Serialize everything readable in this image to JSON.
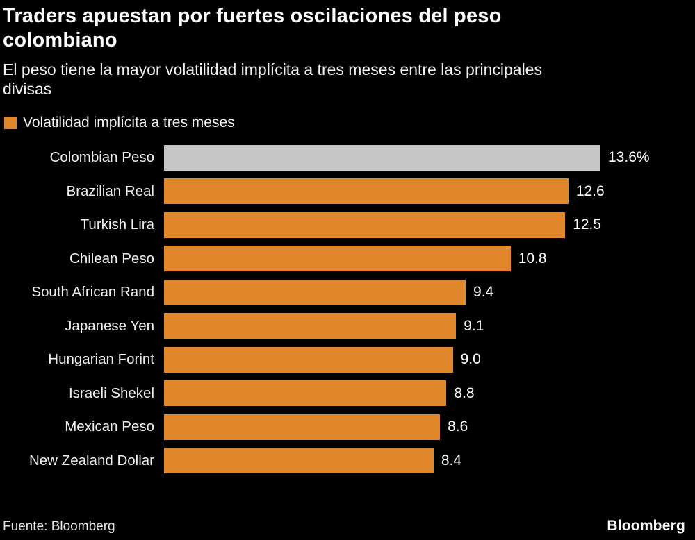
{
  "title": "Traders apuestan por fuertes oscilaciones del peso colombiano",
  "subtitle": "El peso tiene la mayor volatilidad implícita a tres meses entre las principales divisas",
  "legend": {
    "label": "Volatilidad implícita a tres meses",
    "color": "#E1872B"
  },
  "colors": {
    "background": "#000000",
    "bar": "#E1872B",
    "highlight": "#C6C6C6",
    "text": "#FFFFFF"
  },
  "chart_data": {
    "type": "bar",
    "orientation": "horizontal",
    "title": "Traders apuestan por fuertes oscilaciones del peso colombiano",
    "subtitle": "El peso tiene la mayor volatilidad implícita a tres meses entre las principales divisas",
    "legend_entries": [
      "Volatilidad implícita a tres meses"
    ],
    "categories": [
      "Colombian Peso",
      "Brazilian Real",
      "Turkish Lira",
      "Chilean Peso",
      "South African Rand",
      "Japanese Yen",
      "Hungarian Forint",
      "Israeli Shekel",
      "Mexican Peso",
      "New Zealand Dollar"
    ],
    "values": [
      13.6,
      12.6,
      12.5,
      10.8,
      9.4,
      9.1,
      9.0,
      8.8,
      8.6,
      8.4
    ],
    "value_labels": [
      "13.6%",
      "12.6",
      "12.5",
      "10.8",
      "9.4",
      "9.1",
      "9.0",
      "8.8",
      "8.6",
      "8.4"
    ],
    "xlim": [
      0,
      13.6
    ],
    "highlight_index": 0,
    "grid": false,
    "legend_position": "top-left"
  },
  "source": "Fuente: Bloomberg",
  "brand": "Bloomberg"
}
